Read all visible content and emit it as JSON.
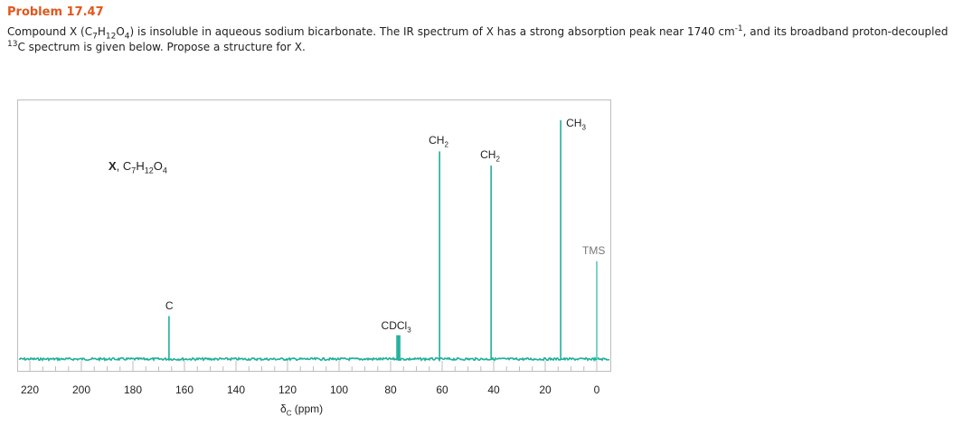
{
  "problem": {
    "title": "Problem 17.47",
    "text_parts": {
      "p1": "Compound X (C",
      "s1": "7",
      "p2": "H",
      "s2": "12",
      "p3": "O",
      "s3": "4",
      "p4": ") is insoluble in aqueous sodium bicarbonate. The IR spectrum of X has a strong absorption peak near 1740 cm",
      "sup1": "-1",
      "p5": ", and its broadband proton-decoupled ",
      "sup2": "13",
      "p6": "C spectrum is given below. Propose a structure for X."
    }
  },
  "chart_data": {
    "type": "line",
    "title": "",
    "subtitle": "",
    "annotation_compound": {
      "bold": "X",
      "formula_parts": [
        ", C",
        "7",
        "H",
        "12",
        "O",
        "4"
      ]
    },
    "xlabel": "δC (ppm)",
    "xlabel_parts": {
      "delta": "δ",
      "sub": "C",
      "rest": " (ppm)"
    },
    "ylabel": "",
    "x_reversed": true,
    "xlim": [
      222,
      -3
    ],
    "x_ticks": [
      220,
      200,
      180,
      160,
      140,
      120,
      100,
      80,
      60,
      40,
      20,
      0
    ],
    "x_tick_labels": [
      "220",
      "200",
      "180",
      "160",
      "140",
      "120",
      "100",
      "80",
      "60",
      "40",
      "20",
      "0"
    ],
    "minor_tick_step": 5,
    "grid": false,
    "series_color": "#1fae9c",
    "peaks": [
      {
        "ppm": 166,
        "relative_height": 0.18,
        "label": "C",
        "label_sub": ""
      },
      {
        "ppm": 77,
        "relative_height": 0.1,
        "label": "CDCl",
        "label_sub": "3"
      },
      {
        "ppm": 61,
        "relative_height": 0.87,
        "label": "CH",
        "label_sub": "2"
      },
      {
        "ppm": 41,
        "relative_height": 0.81,
        "label": "CH",
        "label_sub": "2"
      },
      {
        "ppm": 14,
        "relative_height": 1.0,
        "label": "CH",
        "label_sub": "3"
      },
      {
        "ppm": 0,
        "relative_height": 0.41,
        "label": "TMS",
        "label_sub": ""
      }
    ]
  }
}
